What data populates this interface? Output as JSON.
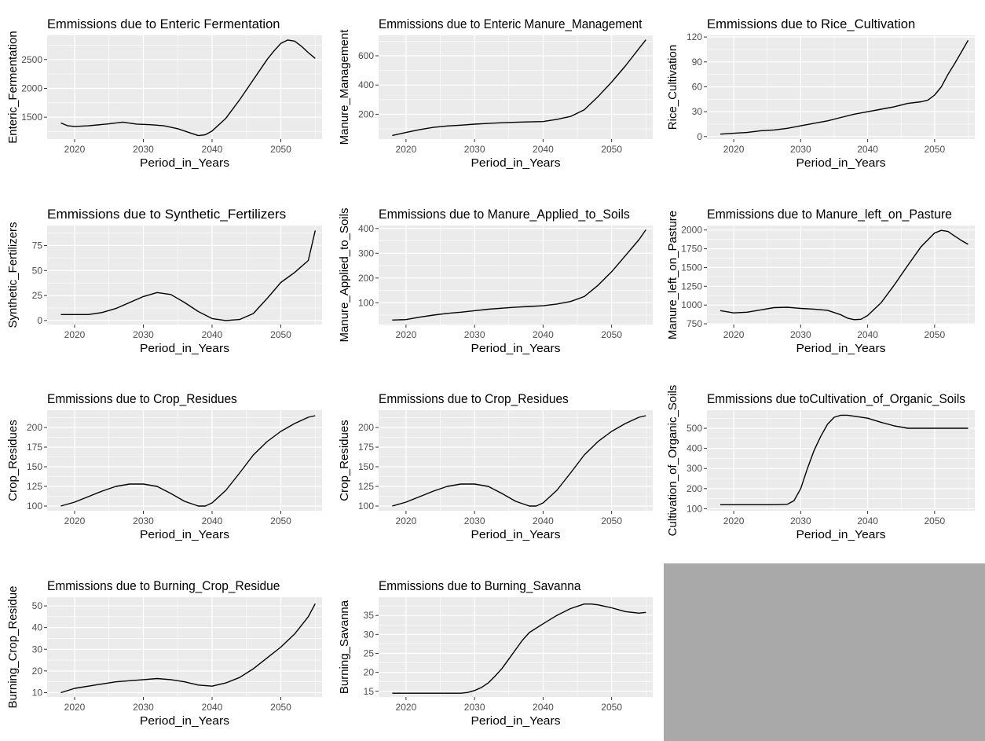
{
  "figure": {
    "background": "#ffffff",
    "panel_background": "#ebebeb",
    "grid_color": "#ffffff",
    "line_color": "#000000",
    "empty_slot_color": "#a9a9a9"
  },
  "chart_data": [
    {
      "type": "line",
      "title": "Emmissions due to Enteric Fermentation",
      "xlabel": "Period_in_Years",
      "ylabel": "Enteric_Fermentation",
      "xlim": [
        2016,
        2056
      ],
      "ylim": [
        1120,
        2920
      ],
      "xticks": [
        2020,
        2030,
        2040,
        2050
      ],
      "yticks": [
        1500,
        2000,
        2500
      ],
      "grid": true,
      "x": [
        2018,
        2019,
        2020,
        2022,
        2025,
        2027,
        2029,
        2031,
        2033,
        2035,
        2037,
        2038,
        2039,
        2040,
        2042,
        2044,
        2046,
        2048,
        2049,
        2050,
        2051,
        2052,
        2053,
        2054,
        2055
      ],
      "y": [
        1400,
        1350,
        1340,
        1350,
        1385,
        1415,
        1380,
        1370,
        1350,
        1300,
        1220,
        1180,
        1195,
        1260,
        1480,
        1800,
        2150,
        2500,
        2650,
        2780,
        2840,
        2820,
        2730,
        2620,
        2520
      ]
    },
    {
      "type": "line",
      "title": "Emmissions due to Enteric Manure_Management",
      "xlabel": "Period_in_Years",
      "ylabel": "Manure_Management",
      "xlim": [
        2016,
        2056
      ],
      "ylim": [
        30,
        740
      ],
      "xticks": [
        2020,
        2030,
        2040,
        2050
      ],
      "yticks": [
        200,
        400,
        600
      ],
      "grid": true,
      "x": [
        2018,
        2020,
        2022,
        2024,
        2026,
        2028,
        2030,
        2032,
        2034,
        2036,
        2038,
        2040,
        2042,
        2044,
        2046,
        2048,
        2050,
        2052,
        2054,
        2055
      ],
      "y": [
        55,
        75,
        95,
        110,
        120,
        125,
        132,
        137,
        142,
        145,
        148,
        150,
        165,
        185,
        230,
        320,
        420,
        530,
        650,
        710
      ]
    },
    {
      "type": "line",
      "title": "Emmissions due to Rice_Cultivation",
      "xlabel": "Period_in_Years",
      "ylabel": "Rice_Cultivation",
      "xlim": [
        2016,
        2056
      ],
      "ylim": [
        -3,
        122
      ],
      "xticks": [
        2020,
        2030,
        2040,
        2050
      ],
      "yticks": [
        0,
        30,
        60,
        90,
        120
      ],
      "grid": true,
      "x": [
        2018,
        2020,
        2022,
        2024,
        2026,
        2028,
        2030,
        2032,
        2034,
        2036,
        2038,
        2040,
        2042,
        2044,
        2046,
        2048,
        2049,
        2050,
        2051,
        2052,
        2053,
        2054,
        2055
      ],
      "y": [
        3,
        4,
        5,
        7,
        8,
        10,
        13,
        16,
        19,
        23,
        27,
        30,
        33,
        36,
        40,
        42,
        44,
        50,
        60,
        75,
        88,
        102,
        116
      ]
    },
    {
      "type": "line",
      "title": "Emmissions due to Synthetic_Fertilizers",
      "xlabel": "Period_in_Years",
      "ylabel": "Synthetic_Fertilizers",
      "xlim": [
        2016,
        2056
      ],
      "ylim": [
        -4,
        95
      ],
      "xticks": [
        2020,
        2030,
        2040,
        2050
      ],
      "yticks": [
        0,
        25,
        50,
        75
      ],
      "grid": true,
      "x": [
        2018,
        2020,
        2022,
        2024,
        2026,
        2028,
        2030,
        2032,
        2034,
        2036,
        2038,
        2040,
        2042,
        2044,
        2046,
        2048,
        2050,
        2052,
        2054,
        2055
      ],
      "y": [
        6,
        6,
        6,
        8,
        12,
        18,
        24,
        28,
        26,
        18,
        9,
        2,
        0,
        1,
        7,
        22,
        38,
        48,
        60,
        90
      ]
    },
    {
      "type": "line",
      "title": "Emmissions due to Manure_Applied_to_Soils",
      "xlabel": "Period_in_Years",
      "ylabel": "Manure_Applied_to_Soils",
      "xlim": [
        2016,
        2056
      ],
      "ylim": [
        12,
        412
      ],
      "xticks": [
        2020,
        2030,
        2040,
        2050
      ],
      "yticks": [
        100,
        200,
        300,
        400
      ],
      "grid": true,
      "x": [
        2018,
        2020,
        2022,
        2024,
        2026,
        2028,
        2030,
        2032,
        2034,
        2036,
        2038,
        2040,
        2042,
        2044,
        2046,
        2048,
        2050,
        2052,
        2054,
        2055
      ],
      "y": [
        30,
        32,
        42,
        50,
        57,
        62,
        68,
        74,
        78,
        82,
        85,
        88,
        95,
        105,
        125,
        170,
        225,
        290,
        355,
        395
      ]
    },
    {
      "type": "line",
      "title": "Emmissions due to Manure_left_on_Pasture",
      "xlabel": "Period_in_Years",
      "ylabel": "Manure_left_on_Pasture",
      "xlim": [
        2016,
        2056
      ],
      "ylim": [
        740,
        2060
      ],
      "xticks": [
        2020,
        2030,
        2040,
        2050
      ],
      "yticks": [
        750,
        1000,
        1250,
        1500,
        1750,
        2000
      ],
      "grid": true,
      "x": [
        2018,
        2020,
        2022,
        2024,
        2026,
        2028,
        2030,
        2032,
        2034,
        2036,
        2037,
        2038,
        2039,
        2040,
        2042,
        2044,
        2046,
        2048,
        2050,
        2051,
        2052,
        2053,
        2054,
        2055
      ],
      "y": [
        925,
        895,
        905,
        935,
        965,
        970,
        955,
        945,
        930,
        870,
        825,
        805,
        810,
        860,
        1030,
        1270,
        1530,
        1780,
        1960,
        1995,
        1980,
        1920,
        1860,
        1810
      ]
    },
    {
      "type": "line",
      "title": "Emmissions due to Crop_Residues",
      "xlabel": "Period_in_Years",
      "ylabel": "Crop_Residues",
      "xlim": [
        2016,
        2056
      ],
      "ylim": [
        94,
        222
      ],
      "xticks": [
        2020,
        2030,
        2040,
        2050
      ],
      "yticks": [
        100,
        125,
        150,
        175,
        200
      ],
      "grid": true,
      "x": [
        2018,
        2020,
        2022,
        2024,
        2026,
        2028,
        2030,
        2032,
        2034,
        2036,
        2038,
        2039,
        2040,
        2042,
        2044,
        2046,
        2048,
        2050,
        2052,
        2054,
        2055
      ],
      "y": [
        100,
        105,
        112,
        119,
        125,
        128,
        128,
        125,
        116,
        106,
        100,
        100,
        104,
        120,
        142,
        165,
        182,
        195,
        205,
        213,
        215
      ]
    },
    {
      "type": "line",
      "title": "Emmissions due to Crop_Residues",
      "xlabel": "Period_in_Years",
      "ylabel": "Crop_Residues",
      "xlim": [
        2016,
        2056
      ],
      "ylim": [
        94,
        222
      ],
      "xticks": [
        2020,
        2030,
        2040,
        2050
      ],
      "yticks": [
        100,
        125,
        150,
        175,
        200
      ],
      "grid": true,
      "x": [
        2018,
        2020,
        2022,
        2024,
        2026,
        2028,
        2030,
        2032,
        2034,
        2036,
        2038,
        2039,
        2040,
        2042,
        2044,
        2046,
        2048,
        2050,
        2052,
        2054,
        2055
      ],
      "y": [
        100,
        105,
        112,
        119,
        125,
        128,
        128,
        125,
        116,
        106,
        100,
        100,
        104,
        120,
        142,
        165,
        182,
        195,
        205,
        213,
        215
      ]
    },
    {
      "type": "line",
      "title": "Emmissions due toCultivation_of_Organic_Soils",
      "xlabel": "Period_in_Years",
      "ylabel": "Cultivation_of_Organic_Soils",
      "xlim": [
        2016,
        2056
      ],
      "ylim": [
        90,
        590
      ],
      "xticks": [
        2020,
        2030,
        2040,
        2050
      ],
      "yticks": [
        100,
        200,
        300,
        400,
        500
      ],
      "grid": true,
      "x": [
        2018,
        2020,
        2022,
        2024,
        2026,
        2028,
        2029,
        2030,
        2031,
        2032,
        2033,
        2034,
        2035,
        2036,
        2037,
        2038,
        2040,
        2042,
        2044,
        2046,
        2048,
        2050,
        2052,
        2055
      ],
      "y": [
        120,
        120,
        120,
        120,
        120,
        122,
        140,
        200,
        300,
        390,
        460,
        520,
        555,
        565,
        565,
        560,
        550,
        530,
        512,
        500,
        500,
        500,
        500,
        500
      ]
    },
    {
      "type": "line",
      "title": "Emmissions due to Burning_Crop_Residue",
      "xlabel": "Period_in_Years",
      "ylabel": "Burning_Crop_Residue",
      "xlim": [
        2016,
        2056
      ],
      "ylim": [
        8,
        54
      ],
      "xticks": [
        2020,
        2030,
        2040,
        2050
      ],
      "yticks": [
        10,
        20,
        30,
        40,
        50
      ],
      "grid": true,
      "x": [
        2018,
        2020,
        2022,
        2024,
        2026,
        2028,
        2030,
        2032,
        2034,
        2036,
        2038,
        2040,
        2042,
        2044,
        2046,
        2048,
        2050,
        2052,
        2054,
        2055
      ],
      "y": [
        10,
        12,
        13,
        14,
        15,
        15.5,
        16,
        16.5,
        16,
        15,
        13.5,
        13,
        14.5,
        17,
        21,
        26,
        31,
        37,
        45,
        51
      ]
    },
    {
      "type": "line",
      "title": "Emmissions due to Burning_Savanna",
      "xlabel": "Period_in_Years",
      "ylabel": "Burning_Savanna",
      "xlim": [
        2016,
        2056
      ],
      "ylim": [
        13.5,
        39.8
      ],
      "xticks": [
        2020,
        2030,
        2040,
        2050
      ],
      "yticks": [
        15,
        20,
        25,
        30,
        35
      ],
      "grid": true,
      "x": [
        2018,
        2020,
        2022,
        2024,
        2026,
        2028,
        2029,
        2030,
        2031,
        2032,
        2033,
        2034,
        2035,
        2036,
        2037,
        2038,
        2040,
        2042,
        2044,
        2046,
        2047,
        2048,
        2050,
        2052,
        2054,
        2055
      ],
      "y": [
        14.5,
        14.5,
        14.5,
        14.5,
        14.5,
        14.5,
        14.7,
        15.2,
        16,
        17.2,
        19,
        21,
        23.5,
        26,
        28.5,
        30.5,
        32.8,
        35,
        36.8,
        38,
        38,
        37.8,
        37,
        36,
        35.6,
        35.8
      ]
    }
  ]
}
